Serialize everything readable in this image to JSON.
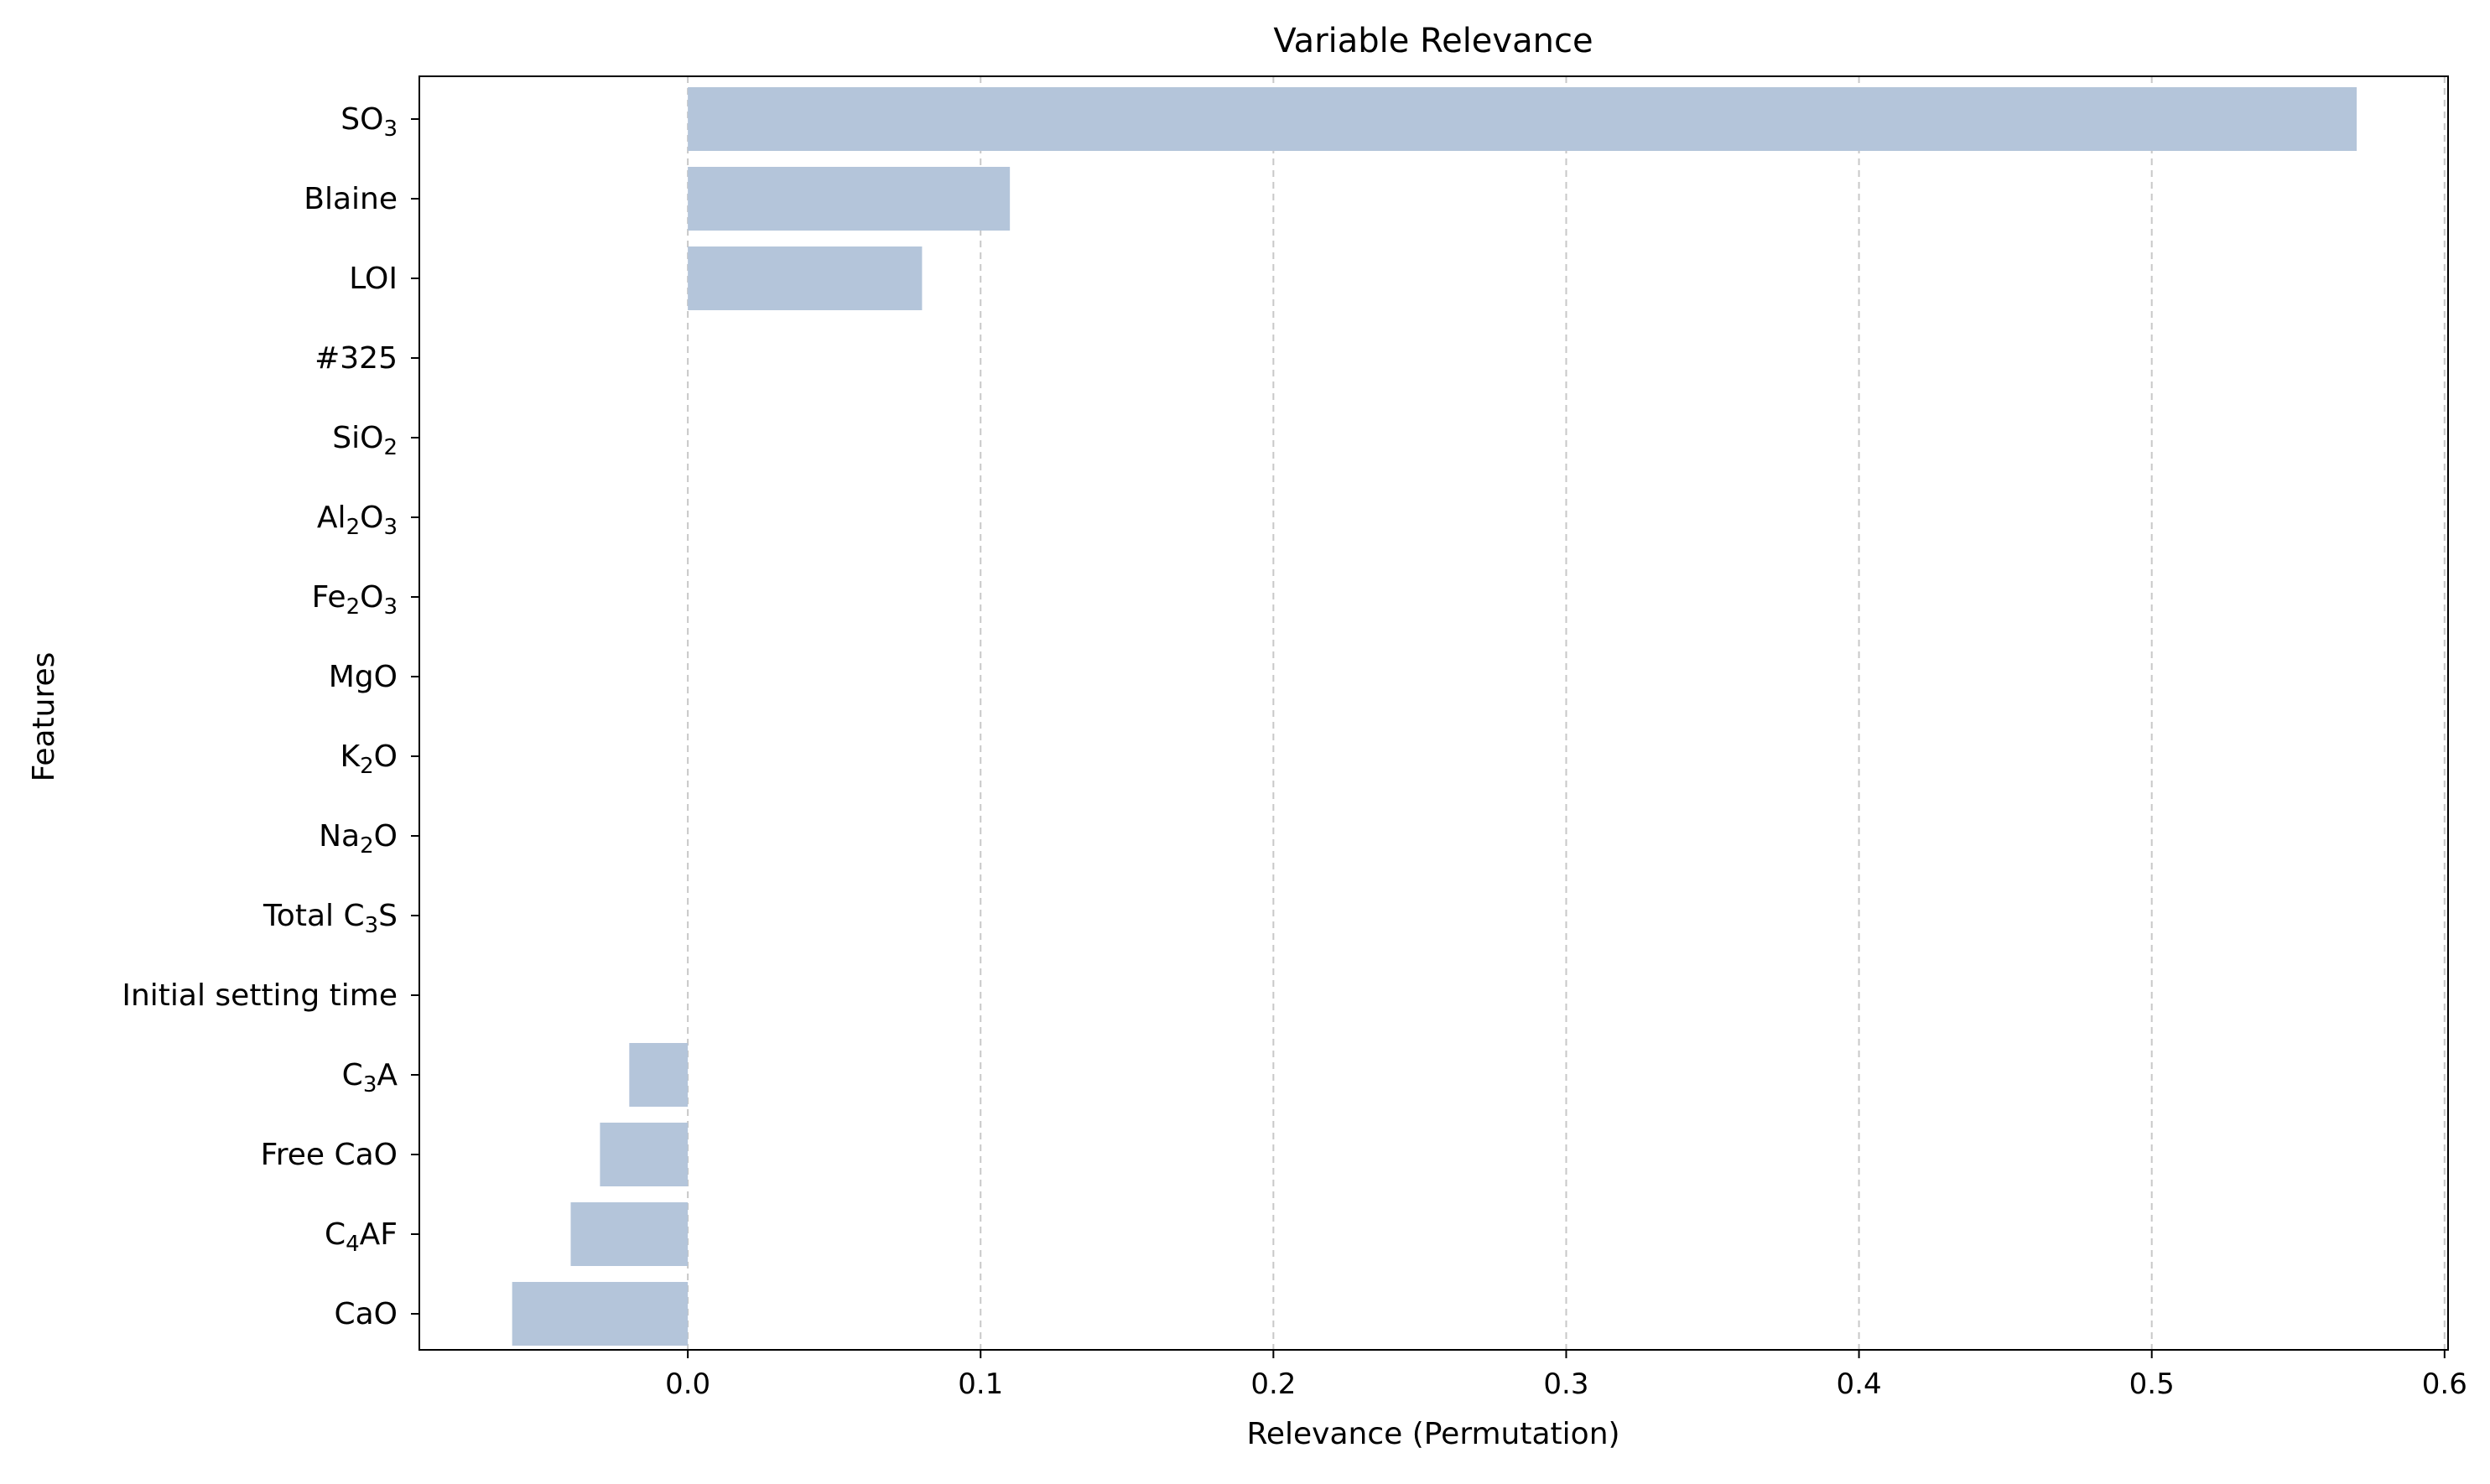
{
  "chart_data": {
    "type": "bar",
    "orientation": "horizontal",
    "title": "Variable Relevance",
    "xlabel": "Relevance (Permutation)",
    "ylabel": "Features",
    "xlim": [
      -0.0917,
      0.6012
    ],
    "x_ticks": [
      0.0,
      0.1,
      0.2,
      0.3,
      0.4,
      0.5,
      0.6
    ],
    "x_tick_labels": [
      "0.0",
      "0.1",
      "0.2",
      "0.3",
      "0.4",
      "0.5",
      "0.6"
    ],
    "grid": {
      "x": true,
      "y": false,
      "style": "dashed"
    },
    "bar_color": "#b4c5da",
    "grid_color": "#c8c8c8",
    "categories": [
      {
        "label": "SO",
        "sub": "3",
        "post": ""
      },
      {
        "label": "Blaine",
        "sub": "",
        "post": ""
      },
      {
        "label": "LOI",
        "sub": "",
        "post": ""
      },
      {
        "label": "#325",
        "sub": "",
        "post": ""
      },
      {
        "label": "SiO",
        "sub": "2",
        "post": ""
      },
      {
        "label": "Al",
        "sub": "2",
        "post": "O",
        "sub2": "3"
      },
      {
        "label": "Fe",
        "sub": "2",
        "post": "O",
        "sub2": "3"
      },
      {
        "label": "MgO",
        "sub": "",
        "post": ""
      },
      {
        "label": "K",
        "sub": "2",
        "post": "O"
      },
      {
        "label": "Na",
        "sub": "2",
        "post": "O"
      },
      {
        "label": "Total C",
        "sub": "3",
        "post": "S"
      },
      {
        "label": "Initial setting time",
        "sub": "",
        "post": ""
      },
      {
        "label": "C",
        "sub": "3",
        "post": "A"
      },
      {
        "label": "Free CaO",
        "sub": "",
        "post": ""
      },
      {
        "label": "C",
        "sub": "4",
        "post": "AF"
      },
      {
        "label": "CaO",
        "sub": "",
        "post": ""
      }
    ],
    "values": [
      0.57,
      0.11,
      0.08,
      0.0,
      0.0,
      0.0,
      0.0,
      0.0,
      0.0,
      0.0,
      0.0,
      0.0,
      -0.02,
      -0.03,
      -0.04,
      -0.06
    ]
  }
}
